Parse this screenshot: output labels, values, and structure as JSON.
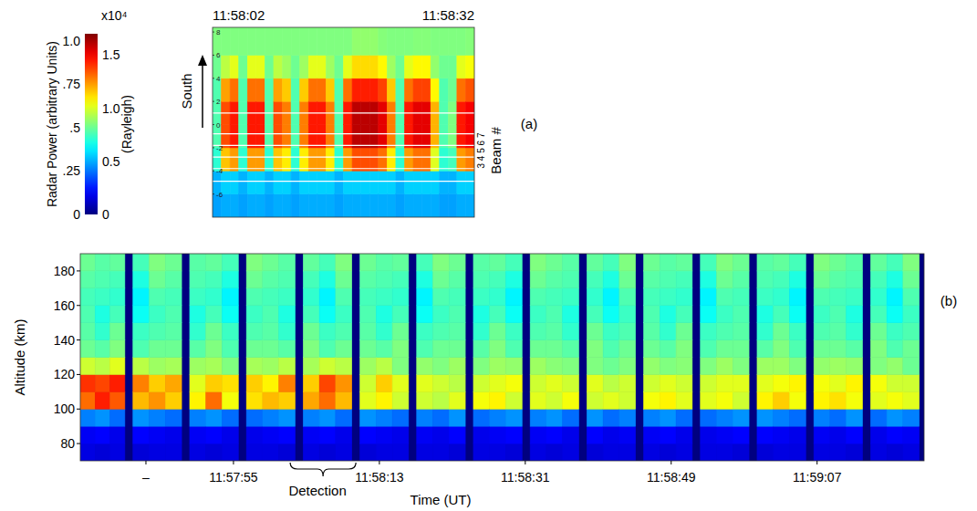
{
  "chart_data": [
    {
      "type": "colorbar",
      "y_label": "Radar Power (arbitrary Units)",
      "ylim": [
        0,
        1.04
      ],
      "yticks": [
        0,
        {
          "value": 0.25,
          "label": ".25"
        },
        {
          "value": 0.5,
          "label": ".5"
        },
        {
          "value": 0.75,
          "label": ".75"
        },
        {
          "value": 1,
          "label": "1.0"
        }
      ],
      "y2_label": "(Rayleigh)",
      "y2_unit_label": "x10⁴",
      "y2lim": [
        0,
        1.7
      ],
      "y2ticks": [
        0,
        0.5,
        {
          "value": 1,
          "label": "1.0"
        },
        1.5
      ]
    },
    {
      "type": "heatmap",
      "panel_label": "(a)",
      "y_label": "South",
      "y2_label": "Beam #",
      "beam_labels": "3 4 5 6 7",
      "xlim": [
        62,
        92
      ],
      "ylim": [
        -8,
        8.4
      ],
      "xticks": [
        {
          "value": 62,
          "label": "11:58:02"
        },
        {
          "value": 92,
          "label": "11:58:32"
        }
      ],
      "yticks": [
        -6,
        -4,
        -2,
        0,
        2,
        4,
        6,
        8
      ],
      "beam_lines": [
        1.0,
        -0.8,
        -1.8,
        -2.8,
        -3.8,
        -4.9
      ],
      "x_edges": [
        62,
        63,
        64,
        65,
        66,
        67,
        68,
        69,
        70,
        71,
        72,
        73,
        74,
        75,
        76,
        77,
        78,
        79,
        80,
        81,
        82,
        83,
        84,
        85,
        86,
        87,
        88,
        89,
        90,
        91,
        92
      ],
      "y_edges": [
        -8,
        -6,
        -4,
        -2,
        0,
        2,
        4,
        6,
        8.4
      ],
      "cells": [
        [
          0.48,
          0.51,
          0.71,
          0.77,
          0.77,
          0.77,
          0.82,
          0.85
        ],
        [
          0.5,
          0.56,
          1.16,
          1.36,
          1.36,
          1.22,
          0.95,
          0.85
        ],
        [
          0.5,
          0.56,
          1.23,
          1.45,
          1.45,
          1.3,
          1.02,
          0.85
        ],
        [
          0.48,
          0.51,
          0.71,
          0.77,
          0.77,
          0.77,
          0.82,
          0.85
        ],
        [
          0.5,
          0.56,
          1.23,
          1.45,
          1.45,
          1.3,
          1.02,
          0.85
        ],
        [
          0.5,
          0.56,
          1.23,
          1.45,
          1.45,
          1.3,
          1.02,
          0.85
        ],
        [
          0.48,
          0.51,
          0.71,
          0.77,
          0.77,
          0.77,
          0.82,
          0.85
        ],
        [
          0.5,
          0.56,
          1.16,
          1.36,
          1.36,
          1.22,
          0.95,
          0.85
        ],
        [
          0.5,
          0.56,
          1.09,
          1.28,
          1.28,
          1.15,
          0.9,
          0.85
        ],
        [
          0.48,
          0.51,
          0.71,
          0.77,
          0.77,
          0.77,
          0.82,
          0.85
        ],
        [
          0.5,
          0.56,
          1.09,
          1.28,
          1.28,
          1.15,
          0.9,
          0.85
        ],
        [
          0.5,
          0.56,
          1.23,
          1.45,
          1.45,
          1.3,
          1.02,
          0.85
        ],
        [
          0.5,
          0.56,
          1.23,
          1.45,
          1.45,
          1.3,
          1.02,
          0.85
        ],
        [
          0.5,
          0.56,
          1.09,
          1.28,
          1.28,
          1.15,
          0.9,
          0.85
        ],
        [
          0.48,
          0.51,
          0.71,
          0.77,
          0.77,
          0.77,
          0.82,
          0.85
        ],
        [
          0.5,
          0.56,
          1.23,
          1.45,
          1.45,
          1.3,
          1.02,
          0.85
        ],
        [
          0.5,
          0.56,
          1.36,
          1.6,
          1.6,
          1.44,
          1.12,
          0.88
        ],
        [
          0.5,
          0.56,
          1.36,
          1.6,
          1.6,
          1.44,
          1.12,
          0.88
        ],
        [
          0.5,
          0.56,
          1.36,
          1.6,
          1.6,
          1.44,
          1.12,
          0.88
        ],
        [
          0.5,
          0.56,
          1.3,
          1.53,
          1.53,
          1.38,
          1.07,
          0.86
        ],
        [
          0.5,
          0.56,
          1.09,
          1.28,
          1.28,
          1.15,
          0.9,
          0.85
        ],
        [
          0.48,
          0.51,
          0.71,
          0.77,
          0.77,
          0.77,
          0.82,
          0.85
        ],
        [
          0.5,
          0.56,
          1.23,
          1.45,
          1.45,
          1.3,
          1.02,
          0.85
        ],
        [
          0.5,
          0.56,
          1.3,
          1.53,
          1.53,
          1.38,
          1.07,
          0.86
        ],
        [
          0.5,
          0.56,
          1.3,
          1.53,
          1.53,
          1.38,
          1.07,
          0.86
        ],
        [
          0.5,
          0.56,
          1.01,
          1.19,
          1.19,
          1.07,
          0.88,
          0.85
        ],
        [
          0.48,
          0.51,
          0.71,
          0.77,
          0.77,
          0.77,
          0.82,
          0.85
        ],
        [
          0.48,
          0.51,
          0.75,
          0.85,
          0.85,
          0.82,
          0.82,
          0.85
        ],
        [
          0.5,
          0.56,
          1.23,
          1.45,
          1.45,
          1.3,
          1.02,
          0.85
        ],
        [
          0.5,
          0.56,
          1.28,
          1.5,
          1.5,
          1.35,
          1.05,
          0.86
        ]
      ]
    },
    {
      "type": "heatmap",
      "panel_label": "(b)",
      "x_label": "Time (UT)",
      "y_label": "Altitude (km)",
      "xlim": [
        36.1,
        140.2
      ],
      "ylim": [
        70,
        190
      ],
      "xticks": [
        {
          "value": 44.2,
          "label": "–"
        },
        {
          "value": 55,
          "label": "11:57:55"
        },
        {
          "value": 73,
          "label": "11:58:13"
        },
        {
          "value": 91,
          "label": "11:58:31"
        },
        {
          "value": 109,
          "label": "11:58:49"
        },
        {
          "value": 127,
          "label": "11:59:07"
        }
      ],
      "yticks": [
        80,
        100,
        120,
        140,
        160,
        180
      ],
      "y_edges": [
        70,
        80,
        90,
        100,
        110,
        120,
        130,
        140,
        150,
        160,
        170,
        180,
        190
      ],
      "frames": [
        [
          36.1,
          41.6
        ],
        [
          42.6,
          48.6
        ],
        [
          49.6,
          55.6
        ],
        [
          56.6,
          62.6
        ],
        [
          63.6,
          69.6
        ],
        [
          70.6,
          76.6
        ],
        [
          77.6,
          83.6
        ],
        [
          84.6,
          90.6
        ],
        [
          91.6,
          97.6
        ],
        [
          98.6,
          104.6
        ],
        [
          105.6,
          111.6
        ],
        [
          112.6,
          118.6
        ],
        [
          119.6,
          125.6
        ],
        [
          126.6,
          132.6
        ],
        [
          133.6,
          139.6
        ]
      ],
      "annotations": [
        {
          "text": "Detection",
          "x_start": 62.0,
          "x_end": 70.1
        }
      ],
      "cells": [
        [
          [
            0.1,
            0.12,
            0.26,
            0.8,
            0.86,
            0.6,
            0.5,
            0.48,
            0.47,
            0.46,
            0.48,
            0.5
          ],
          [
            0.09,
            0.13,
            0.28,
            0.88,
            0.84,
            0.58,
            0.48,
            0.44,
            0.42,
            0.45,
            0.47,
            0.48
          ],
          [
            0.1,
            0.11,
            0.24,
            0.82,
            0.88,
            0.62,
            0.52,
            0.5,
            0.46,
            0.44,
            0.46,
            0.49
          ]
        ],
        [
          [
            0.09,
            0.13,
            0.28,
            0.72,
            0.78,
            0.58,
            0.47,
            0.45,
            0.4,
            0.38,
            0.42,
            0.46
          ],
          [
            0.1,
            0.12,
            0.26,
            0.76,
            0.7,
            0.55,
            0.5,
            0.47,
            0.45,
            0.47,
            0.5,
            0.52
          ],
          [
            0.1,
            0.11,
            0.24,
            0.7,
            0.74,
            0.56,
            0.5,
            0.48,
            0.47,
            0.46,
            0.48,
            0.5
          ]
        ],
        [
          [
            0.1,
            0.12,
            0.26,
            0.66,
            0.62,
            0.55,
            0.48,
            0.44,
            0.42,
            0.45,
            0.47,
            0.48
          ],
          [
            0.09,
            0.13,
            0.28,
            0.8,
            0.7,
            0.56,
            0.52,
            0.5,
            0.46,
            0.44,
            0.46,
            0.49
          ],
          [
            0.1,
            0.11,
            0.24,
            0.64,
            0.68,
            0.52,
            0.47,
            0.45,
            0.4,
            0.38,
            0.42,
            0.46
          ]
        ],
        [
          [
            0.1,
            0.11,
            0.24,
            0.68,
            0.7,
            0.56,
            0.5,
            0.47,
            0.45,
            0.47,
            0.5,
            0.52
          ],
          [
            0.1,
            0.12,
            0.26,
            0.72,
            0.66,
            0.55,
            0.5,
            0.48,
            0.47,
            0.46,
            0.48,
            0.5
          ],
          [
            0.09,
            0.13,
            0.28,
            0.7,
            0.78,
            0.58,
            0.48,
            0.44,
            0.42,
            0.45,
            0.47,
            0.48
          ]
        ],
        [
          [
            0.1,
            0.12,
            0.26,
            0.74,
            0.7,
            0.56,
            0.52,
            0.5,
            0.46,
            0.44,
            0.46,
            0.49
          ],
          [
            0.09,
            0.13,
            0.28,
            0.8,
            0.84,
            0.6,
            0.47,
            0.45,
            0.4,
            0.38,
            0.42,
            0.46
          ],
          [
            0.1,
            0.11,
            0.24,
            0.72,
            0.76,
            0.58,
            0.5,
            0.47,
            0.45,
            0.47,
            0.5,
            0.52
          ]
        ],
        [
          [
            0.09,
            0.13,
            0.28,
            0.62,
            0.6,
            0.55,
            0.5,
            0.48,
            0.47,
            0.46,
            0.48,
            0.5
          ],
          [
            0.1,
            0.12,
            0.26,
            0.66,
            0.7,
            0.58,
            0.48,
            0.44,
            0.42,
            0.45,
            0.47,
            0.48
          ],
          [
            0.1,
            0.11,
            0.24,
            0.6,
            0.62,
            0.52,
            0.52,
            0.5,
            0.46,
            0.44,
            0.46,
            0.49
          ]
        ],
        [
          [
            0.1,
            0.12,
            0.26,
            0.6,
            0.62,
            0.54,
            0.47,
            0.45,
            0.4,
            0.38,
            0.42,
            0.46
          ],
          [
            0.1,
            0.11,
            0.24,
            0.58,
            0.6,
            0.52,
            0.5,
            0.47,
            0.45,
            0.47,
            0.5,
            0.52
          ],
          [
            0.09,
            0.13,
            0.28,
            0.62,
            0.58,
            0.55,
            0.5,
            0.48,
            0.47,
            0.46,
            0.48,
            0.5
          ]
        ],
        [
          [
            0.1,
            0.11,
            0.24,
            0.64,
            0.6,
            0.52,
            0.48,
            0.44,
            0.42,
            0.45,
            0.47,
            0.48
          ],
          [
            0.1,
            0.12,
            0.26,
            0.66,
            0.62,
            0.55,
            0.52,
            0.5,
            0.46,
            0.44,
            0.46,
            0.49
          ],
          [
            0.09,
            0.13,
            0.28,
            0.6,
            0.64,
            0.54,
            0.47,
            0.45,
            0.4,
            0.38,
            0.42,
            0.46
          ]
        ],
        [
          [
            0.1,
            0.12,
            0.26,
            0.62,
            0.6,
            0.55,
            0.5,
            0.47,
            0.45,
            0.47,
            0.5,
            0.52
          ],
          [
            0.09,
            0.13,
            0.28,
            0.6,
            0.62,
            0.53,
            0.5,
            0.48,
            0.47,
            0.46,
            0.48,
            0.5
          ],
          [
            0.1,
            0.11,
            0.24,
            0.64,
            0.6,
            0.52,
            0.48,
            0.44,
            0.42,
            0.45,
            0.47,
            0.48
          ]
        ],
        [
          [
            0.09,
            0.13,
            0.28,
            0.6,
            0.62,
            0.52,
            0.52,
            0.5,
            0.46,
            0.44,
            0.46,
            0.49
          ],
          [
            0.1,
            0.11,
            0.24,
            0.62,
            0.58,
            0.5,
            0.47,
            0.45,
            0.4,
            0.38,
            0.42,
            0.46
          ],
          [
            0.1,
            0.12,
            0.26,
            0.6,
            0.6,
            0.52,
            0.5,
            0.47,
            0.45,
            0.47,
            0.5,
            0.52
          ]
        ],
        [
          [
            0.1,
            0.12,
            0.26,
            0.64,
            0.6,
            0.54,
            0.5,
            0.48,
            0.47,
            0.46,
            0.48,
            0.5
          ],
          [
            0.09,
            0.13,
            0.28,
            0.66,
            0.62,
            0.52,
            0.48,
            0.44,
            0.42,
            0.45,
            0.47,
            0.48
          ],
          [
            0.1,
            0.11,
            0.24,
            0.62,
            0.6,
            0.53,
            0.52,
            0.5,
            0.46,
            0.44,
            0.46,
            0.49
          ]
        ],
        [
          [
            0.1,
            0.11,
            0.24,
            0.62,
            0.6,
            0.52,
            0.47,
            0.45,
            0.4,
            0.38,
            0.42,
            0.46
          ],
          [
            0.1,
            0.12,
            0.26,
            0.64,
            0.62,
            0.55,
            0.5,
            0.47,
            0.45,
            0.47,
            0.5,
            0.52
          ],
          [
            0.09,
            0.13,
            0.28,
            0.6,
            0.62,
            0.52,
            0.5,
            0.48,
            0.47,
            0.46,
            0.48,
            0.5
          ]
        ],
        [
          [
            0.09,
            0.13,
            0.28,
            0.66,
            0.62,
            0.55,
            0.48,
            0.44,
            0.42,
            0.45,
            0.47,
            0.48
          ],
          [
            0.1,
            0.12,
            0.26,
            0.7,
            0.64,
            0.55,
            0.52,
            0.5,
            0.46,
            0.44,
            0.46,
            0.49
          ],
          [
            0.1,
            0.11,
            0.24,
            0.64,
            0.66,
            0.52,
            0.47,
            0.45,
            0.4,
            0.38,
            0.42,
            0.46
          ]
        ],
        [
          [
            0.1,
            0.12,
            0.26,
            0.66,
            0.64,
            0.54,
            0.5,
            0.47,
            0.45,
            0.47,
            0.5,
            0.52
          ],
          [
            0.1,
            0.11,
            0.24,
            0.68,
            0.62,
            0.55,
            0.5,
            0.48,
            0.47,
            0.46,
            0.48,
            0.5
          ],
          [
            0.09,
            0.13,
            0.28,
            0.64,
            0.66,
            0.54,
            0.48,
            0.44,
            0.42,
            0.45,
            0.47,
            0.48
          ]
        ],
        [
          [
            0.1,
            0.11,
            0.24,
            0.62,
            0.64,
            0.52,
            0.52,
            0.5,
            0.46,
            0.44,
            0.46,
            0.49
          ],
          [
            0.09,
            0.13,
            0.28,
            0.64,
            0.6,
            0.54,
            0.47,
            0.45,
            0.4,
            0.38,
            0.42,
            0.46
          ],
          [
            0.1,
            0.12,
            0.26,
            0.62,
            0.6,
            0.5,
            0.5,
            0.47,
            0.45,
            0.47,
            0.5,
            0.52
          ]
        ]
      ]
    }
  ]
}
